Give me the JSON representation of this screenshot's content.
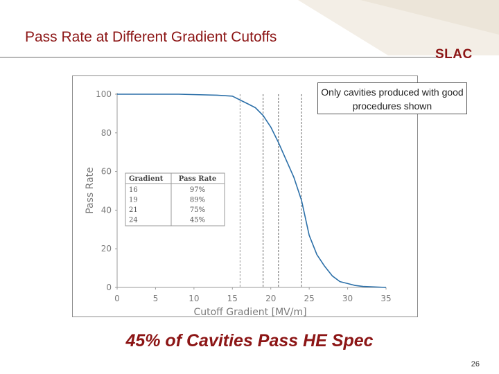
{
  "slide": {
    "title": "Pass Rate at Different Gradient Cutoffs",
    "logo": "SLAC",
    "callout": "Only cavities produced with good procedures shown",
    "headline": "45% of Cavities Pass HE Spec",
    "page_number": "26"
  },
  "colors": {
    "accent": "#8c1515",
    "line": "#2b6fa8"
  },
  "chart_data": {
    "type": "line",
    "xlabel": "Cutoff Gradient [MV/m]",
    "ylabel": "Pass Rate",
    "xlim": [
      0,
      35
    ],
    "ylim": [
      0,
      100
    ],
    "x_ticks": [
      0,
      5,
      10,
      15,
      20,
      25,
      30,
      35
    ],
    "y_ticks": [
      0,
      20,
      40,
      60,
      80,
      100
    ],
    "grid": false,
    "reference_lines_x": [
      16,
      19,
      21,
      24
    ],
    "series": [
      {
        "x": [
          0,
          8,
          13,
          15,
          16,
          17,
          18,
          19,
          20,
          21,
          22,
          23,
          24,
          25,
          26,
          27,
          28,
          29,
          30,
          31,
          32,
          35
        ],
        "y": [
          100,
          100,
          99.5,
          99,
          97,
          95,
          93,
          89,
          83,
          75,
          66,
          57,
          45,
          27,
          17,
          11,
          6,
          3,
          2,
          1,
          0.5,
          0
        ]
      }
    ],
    "table": {
      "headers": [
        "Gradient",
        "Pass Rate"
      ],
      "rows": [
        [
          "16",
          "97%"
        ],
        [
          "19",
          "89%"
        ],
        [
          "21",
          "75%"
        ],
        [
          "24",
          "45%"
        ]
      ]
    }
  }
}
